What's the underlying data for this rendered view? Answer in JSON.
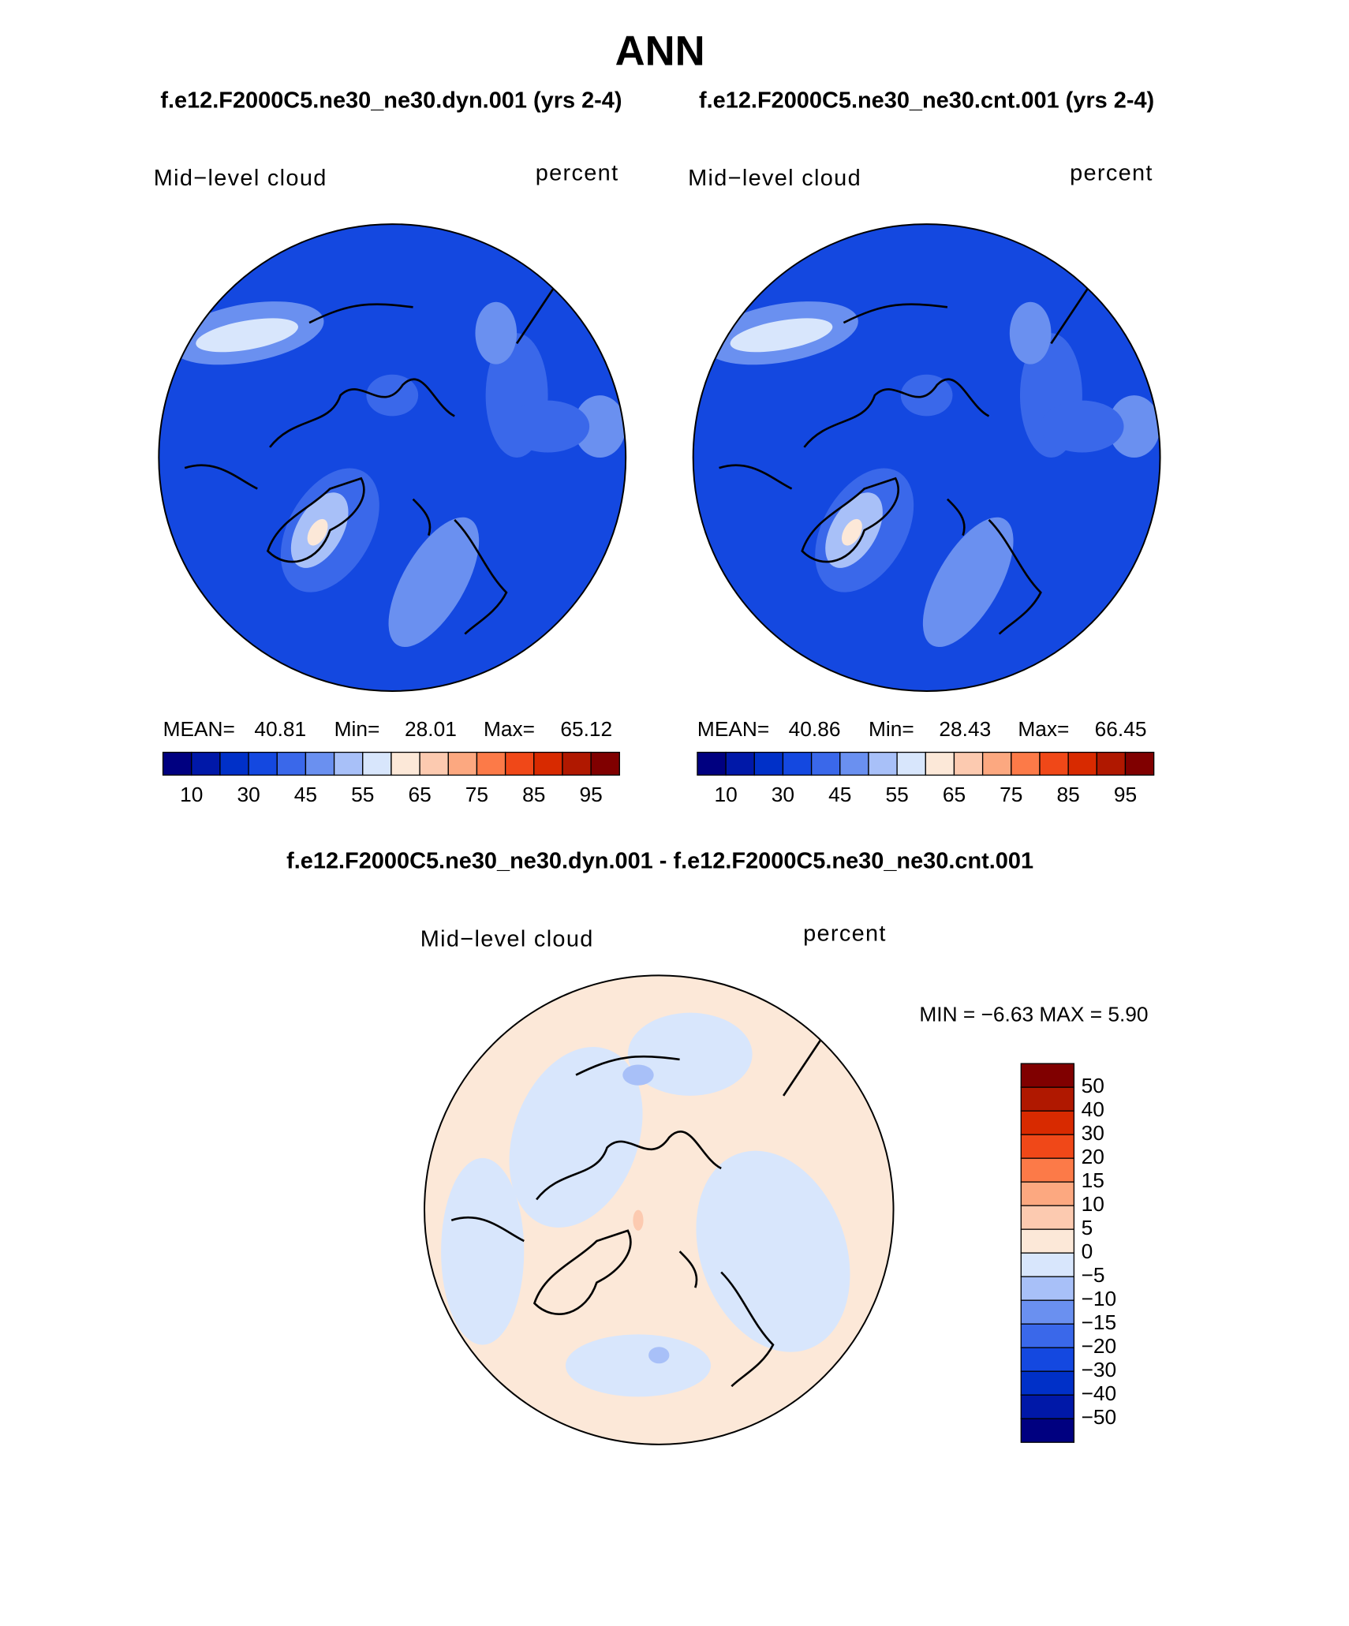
{
  "header": {
    "title": "ANN",
    "case_left": "f.e12.F2000C5.ne30_ne30.dyn.001 (yrs 2-4)",
    "case_right": "f.e12.F2000C5.ne30_ne30.cnt.001 (yrs 2-4)"
  },
  "panels": [
    {
      "left_label": "Mid−level cloud",
      "right_label": "percent",
      "stats": [
        "MEAN=",
        "40.81",
        "Min=",
        "28.01",
        "Max=",
        "65.12"
      ],
      "colorbar_labels": [
        "10",
        "30",
        "45",
        "55",
        "65",
        "75",
        "85",
        "95"
      ],
      "colors": [
        "#000080",
        "#0018a8",
        "#0030c8",
        "#1448e0",
        "#3a68ea",
        "#6a90f0",
        "#a8c0f8",
        "#d8e6fc",
        "#fce8d8",
        "#fccab0",
        "#fca880",
        "#fc7a48",
        "#f04818",
        "#d82a00",
        "#b01800",
        "#800000"
      ]
    },
    {
      "left_label": "Mid−level cloud",
      "right_label": "percent",
      "stats": [
        "MEAN=",
        "40.86",
        "Min=",
        "28.43",
        "Max=",
        "66.45"
      ],
      "colorbar_labels": [
        "10",
        "30",
        "45",
        "55",
        "65",
        "75",
        "85",
        "95"
      ],
      "colors": [
        "#000080",
        "#0018a8",
        "#0030c8",
        "#1448e0",
        "#3a68ea",
        "#6a90f0",
        "#a8c0f8",
        "#d8e6fc",
        "#fce8d8",
        "#fccab0",
        "#fca880",
        "#fc7a48",
        "#f04818",
        "#d82a00",
        "#b01800",
        "#800000"
      ]
    }
  ],
  "difference": {
    "title": "f.e12.F2000C5.ne30_ne30.dyn.001 - f.e12.F2000C5.ne30_ne30.cnt.001",
    "left_label": "Mid−level cloud",
    "right_label": "percent",
    "stats": "MIN =   −6.63 MAX =     5.90",
    "colorbar_labels": [
      "50",
      "40",
      "30",
      "20",
      "15",
      "10",
      "5",
      "0",
      "−5",
      "−10",
      "−15",
      "−20",
      "−30",
      "−40",
      "−50"
    ],
    "colors": [
      "#800000",
      "#b01800",
      "#d82a00",
      "#f04818",
      "#fc7a48",
      "#fca880",
      "#fccab0",
      "#fce8d8",
      "#d8e6fc",
      "#a8c0f8",
      "#6a90f0",
      "#3a68ea",
      "#1448e0",
      "#0030c8",
      "#0018a8",
      "#000080"
    ]
  }
}
